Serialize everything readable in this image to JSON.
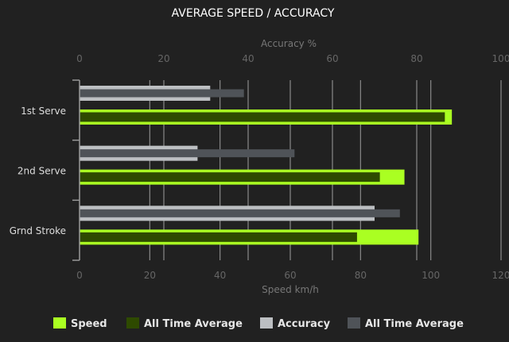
{
  "chart_data": {
    "type": "bar",
    "orientation": "horizontal",
    "title": "AVERAGE SPEED / ACCURACY",
    "categories": [
      "1st Serve",
      "2nd Serve",
      "Grnd Stroke"
    ],
    "speed_axis": {
      "label": "Speed km/h",
      "range": [
        0,
        120
      ],
      "ticks": [
        0,
        20,
        40,
        60,
        80,
        100,
        120
      ],
      "position": "bottom"
    },
    "accuracy_axis": {
      "label": "Accuracy %",
      "range": [
        0,
        100
      ],
      "ticks": [
        0,
        20,
        40,
        60,
        80,
        100
      ],
      "position": "top"
    },
    "grid": true,
    "legend_position": "bottom",
    "series": [
      {
        "name": "Speed",
        "axis": "speed",
        "color": "#aaff22",
        "values": [
          106,
          92.5,
          96.5
        ]
      },
      {
        "name": "All Time Average",
        "axis": "speed",
        "color": "#2e4a00",
        "values": [
          104,
          85.5,
          79
        ]
      },
      {
        "name": "Accuracy",
        "axis": "accuracy",
        "color": "#bcbfc2",
        "values": [
          31,
          28,
          70
        ]
      },
      {
        "name": "All Time Average",
        "axis": "accuracy",
        "color": "#4f5358",
        "values": [
          39,
          51,
          76
        ]
      }
    ]
  }
}
